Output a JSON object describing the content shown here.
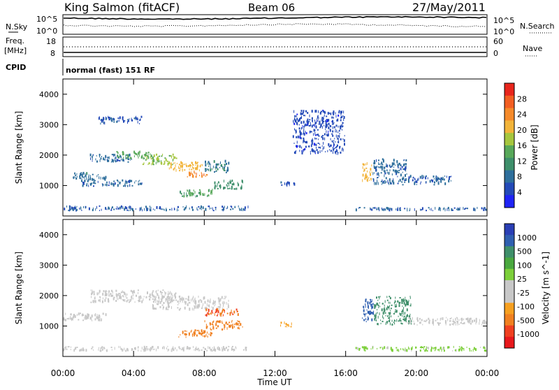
{
  "header": {
    "station": "King Salmon (fitACF)",
    "beam": "Beam 06",
    "date": "27/May/2011"
  },
  "top_panels": {
    "nsky_label": "N.Sky",
    "nsky_ticks": [
      "10^5",
      "10^0"
    ],
    "nsearch_label": "N.Search",
    "nsearch_ticks": [
      "10^5",
      "10^0"
    ],
    "freq_label_1": "Freq.",
    "freq_label_2": "[MHz]",
    "freq_ticks": [
      "18",
      "8"
    ],
    "nave_label": "Nave",
    "nave_ticks": [
      "60",
      "0"
    ],
    "cpid_label": "CPID",
    "cpid_text": "normal (fast) 151 RF"
  },
  "colors": {
    "power_scale": [
      "#1f23f5",
      "#234ab8",
      "#2e6f9c",
      "#3e8f6b",
      "#58a85a",
      "#a6c63e",
      "#f2b43a",
      "#f58a2a",
      "#f25e22",
      "#e8251c"
    ],
    "velocity_scale": [
      "#2a3fb5",
      "#2f5fb0",
      "#3f8f6a",
      "#4aa83f",
      "#7ccf3a",
      "#c8c8c8",
      "#c8c8c8",
      "#f6a020",
      "#f08020",
      "#f04020",
      "#e8181c"
    ]
  },
  "chart_data": [
    {
      "type": "heatmap",
      "name": "power",
      "xlabel": "",
      "ylabel": "Slant Range [km]",
      "x_range_hours": [
        0,
        24
      ],
      "ylim": [
        0,
        4500
      ],
      "y_ticks": [
        "4000",
        "3000",
        "2000",
        "1000"
      ],
      "colorbar_label": "Power [dB]",
      "colorbar_ticks": [
        "28",
        "24",
        "20",
        "16",
        "12",
        "8",
        "4"
      ],
      "patches": [
        {
          "x": [
            0.5,
            2.5
          ],
          "y": [
            1150,
            1450
          ],
          "v": 7
        },
        {
          "x": [
            1.5,
            4.0
          ],
          "y": [
            1750,
            2050
          ],
          "v": 6
        },
        {
          "x": [
            3.0,
            5.0
          ],
          "y": [
            1850,
            2150
          ],
          "v": 13
        },
        {
          "x": [
            4.5,
            6.5
          ],
          "y": [
            1650,
            2050
          ],
          "v": 16
        },
        {
          "x": [
            6.0,
            8.0
          ],
          "y": [
            1450,
            1800
          ],
          "v": 20
        },
        {
          "x": [
            7.0,
            8.2
          ],
          "y": [
            1250,
            1500
          ],
          "v": 24
        },
        {
          "x": [
            8.0,
            9.5
          ],
          "y": [
            1400,
            1850
          ],
          "v": 8
        },
        {
          "x": [
            1.0,
            4.5
          ],
          "y": [
            950,
            1200
          ],
          "v": 6
        },
        {
          "x": [
            6.5,
            8.5
          ],
          "y": [
            600,
            900
          ],
          "v": 12
        },
        {
          "x": [
            8.5,
            10.2
          ],
          "y": [
            850,
            1200
          ],
          "v": 10
        },
        {
          "x": [
            12.3,
            13.2
          ],
          "y": [
            950,
            1150
          ],
          "v": 4
        },
        {
          "x": [
            16.9,
            17.5
          ],
          "y": [
            1100,
            1800
          ],
          "v": 20
        },
        {
          "x": [
            17.5,
            19.5
          ],
          "y": [
            1000,
            1900
          ],
          "v": 6
        },
        {
          "x": [
            19.5,
            22.0
          ],
          "y": [
            1000,
            1350
          ],
          "v": 5
        },
        {
          "x": [
            0.0,
            10.5
          ],
          "y": [
            150,
            350
          ],
          "v": 5
        },
        {
          "x": [
            16.5,
            24.0
          ],
          "y": [
            150,
            300
          ],
          "v": 5
        },
        {
          "x": [
            2.0,
            4.5
          ],
          "y": [
            3000,
            3300
          ],
          "v": 4
        },
        {
          "x": [
            13.0,
            16.0
          ],
          "y": [
            2000,
            3500
          ],
          "v": 3
        }
      ]
    },
    {
      "type": "heatmap",
      "name": "velocity",
      "xlabel": "Time UT",
      "ylabel": "Slant Range [km]",
      "x_range_hours": [
        0,
        24
      ],
      "x_ticks": [
        "00:00",
        "04:00",
        "08:00",
        "12:00",
        "16:00",
        "20:00",
        "00:00"
      ],
      "ylim": [
        0,
        4500
      ],
      "y_ticks": [
        "4000",
        "3000",
        "2000",
        "1000"
      ],
      "colorbar_label": "Velocity [m s^-1]",
      "colorbar_ticks": [
        "1000",
        "500",
        "100",
        "25",
        "-25",
        "-100",
        "-500",
        "-1000"
      ],
      "patches": [
        {
          "x": [
            0.0,
            2.5
          ],
          "y": [
            1150,
            1450
          ],
          "v": 0
        },
        {
          "x": [
            1.5,
            6.5
          ],
          "y": [
            1750,
            2200
          ],
          "v": 0
        },
        {
          "x": [
            5.0,
            9.5
          ],
          "y": [
            1500,
            2000
          ],
          "v": 0
        },
        {
          "x": [
            8.0,
            10.0
          ],
          "y": [
            1300,
            1600
          ],
          "v": -400
        },
        {
          "x": [
            6.5,
            8.5
          ],
          "y": [
            600,
            900
          ],
          "v": -300
        },
        {
          "x": [
            8.0,
            10.2
          ],
          "y": [
            850,
            1200
          ],
          "v": -350
        },
        {
          "x": [
            12.3,
            13.0
          ],
          "y": [
            950,
            1150
          ],
          "v": -150
        },
        {
          "x": [
            16.9,
            17.6
          ],
          "y": [
            1100,
            1900
          ],
          "v": 600
        },
        {
          "x": [
            17.6,
            19.8
          ],
          "y": [
            1000,
            2000
          ],
          "v": 150
        },
        {
          "x": [
            19.5,
            24.0
          ],
          "y": [
            1000,
            1300
          ],
          "v": 0
        },
        {
          "x": [
            16.5,
            24.0
          ],
          "y": [
            150,
            350
          ],
          "v": 60
        },
        {
          "x": [
            0.0,
            10.5
          ],
          "y": [
            150,
            350
          ],
          "v": 0
        }
      ]
    }
  ]
}
